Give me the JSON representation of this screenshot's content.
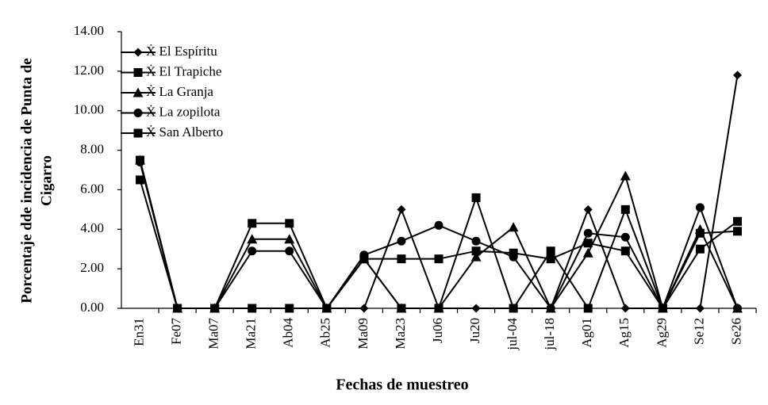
{
  "chart_data": {
    "type": "line",
    "x_label": "Fechas de muestreo",
    "y_label": [
      "Porcentaje dde incidencia de Punta de",
      "Cigarro"
    ],
    "categories": [
      "En31",
      "Fe07",
      "Ma07",
      "Ma21",
      "Ab04",
      "Ab25",
      "Ma09",
      "Ma23",
      "Ju06",
      "Ju20",
      "jul-04",
      "jul-18",
      "Ag01",
      "Ag15",
      "Ag29",
      "Se12",
      "Se26"
    ],
    "series": [
      {
        "name": "Ẋ El Espíritu",
        "color": "#000000",
        "marker": "diamond",
        "values": [
          7.4,
          0,
          0,
          0,
          0,
          0,
          0,
          5.0,
          0,
          0,
          0,
          0,
          5.0,
          0,
          0,
          0,
          11.8
        ]
      },
      {
        "name": "Ẋ El Trapiche",
        "color": "#000000",
        "marker": "square",
        "values": [
          6.5,
          0,
          0,
          4.3,
          4.3,
          0,
          2.5,
          2.5,
          2.5,
          2.9,
          2.8,
          2.5,
          3.3,
          2.9,
          0,
          3.0,
          4.4
        ]
      },
      {
        "name": "Ẋ La Granja",
        "color": "#000000",
        "marker": "triangle",
        "values": [
          7.5,
          0,
          0,
          3.5,
          3.5,
          0,
          2.5,
          0,
          0,
          2.6,
          4.1,
          0,
          2.8,
          6.7,
          0,
          4.0,
          0
        ]
      },
      {
        "name": "Ẋ La zopilota",
        "color": "#000000",
        "marker": "circle",
        "values": [
          7.4,
          0,
          0,
          2.9,
          2.9,
          0,
          2.7,
          3.4,
          4.2,
          3.4,
          2.6,
          0,
          3.8,
          3.6,
          0,
          5.1,
          0
        ]
      },
      {
        "name": "Ẋ San Alberto",
        "color": "#000000",
        "marker": "square",
        "values": [
          7.5,
          0,
          0,
          0,
          0,
          0,
          2.5,
          0,
          0,
          5.6,
          0,
          2.9,
          0,
          5.0,
          0,
          3.8,
          3.9
        ]
      }
    ],
    "ylim": [
      0,
      14
    ],
    "yticks": [
      {
        "value": 0,
        "label": "0.00"
      },
      {
        "value": 2,
        "label": "2.00"
      },
      {
        "value": 4,
        "label": "4.00"
      },
      {
        "value": 6,
        "label": "6.00"
      },
      {
        "value": 8,
        "label": "8.00"
      },
      {
        "value": 10,
        "label": "10.00"
      },
      {
        "value": 12,
        "label": "12.00"
      },
      {
        "value": 14,
        "label": "14.00"
      }
    ],
    "grid": false,
    "legend": "top-left"
  }
}
